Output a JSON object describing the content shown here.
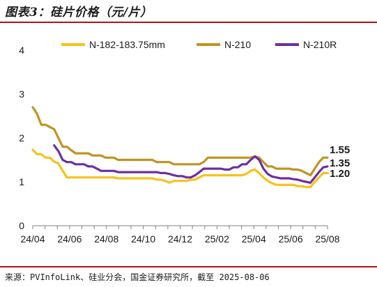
{
  "header": {
    "title": "图表3：硅片价格（元/片）"
  },
  "footer": {
    "source": "来源：PVInfoLink、硅业分会，国金证券研究所，截至 2025-08-06"
  },
  "colors": {
    "accent_rule": "#b0121b",
    "axis": "#7f7f7f",
    "text": "#1a1a1a"
  },
  "chart_data": {
    "type": "line",
    "title": "硅片价格（元/片）",
    "xlabel": "",
    "ylabel": "",
    "ylim": [
      0,
      4
    ],
    "y_ticks": [
      0,
      1,
      2,
      3,
      4
    ],
    "x_tick_labels": [
      "24/04",
      "24/06",
      "24/08",
      "24/10",
      "24/12",
      "25/02",
      "25/04",
      "25/06",
      "25/08"
    ],
    "grid": false,
    "legend_position": "top",
    "end_labels": [
      "1.55",
      "1.35",
      "1.20"
    ],
    "series": [
      {
        "name": "N-182-183.75mm",
        "color": "#f7c21a",
        "values": [
          1.73,
          1.63,
          1.63,
          1.55,
          1.55,
          1.46,
          1.42,
          1.25,
          1.1,
          1.1,
          1.1,
          1.1,
          1.1,
          1.1,
          1.1,
          1.1,
          1.1,
          1.1,
          1.1,
          1.1,
          1.08,
          1.08,
          1.08,
          1.08,
          1.08,
          1.08,
          1.08,
          1.08,
          1.08,
          1.05,
          1.05,
          1.02,
          0.98,
          1.02,
          1.02,
          1.02,
          1.02,
          1.05,
          1.05,
          1.1,
          1.15,
          1.15,
          1.15,
          1.15,
          1.15,
          1.15,
          1.15,
          1.15,
          1.15,
          1.15,
          1.18,
          1.25,
          1.28,
          1.2,
          1.1,
          1.02,
          0.97,
          0.93,
          0.93,
          0.93,
          0.93,
          0.93,
          0.9,
          0.9,
          0.88,
          0.88,
          1.0,
          1.1,
          1.2,
          1.2
        ]
      },
      {
        "name": "N-210",
        "color": "#bf9420",
        "values": [
          2.7,
          2.55,
          2.3,
          2.3,
          2.25,
          2.2,
          2.0,
          1.8,
          1.8,
          1.72,
          1.65,
          1.65,
          1.65,
          1.65,
          1.6,
          1.6,
          1.6,
          1.55,
          1.55,
          1.55,
          1.5,
          1.5,
          1.5,
          1.5,
          1.5,
          1.5,
          1.5,
          1.5,
          1.5,
          1.45,
          1.45,
          1.45,
          1.45,
          1.4,
          1.4,
          1.4,
          1.4,
          1.4,
          1.4,
          1.4,
          1.45,
          1.55,
          1.55,
          1.55,
          1.55,
          1.55,
          1.55,
          1.55,
          1.55,
          1.55,
          1.55,
          1.55,
          1.58,
          1.55,
          1.45,
          1.35,
          1.35,
          1.3,
          1.3,
          1.3,
          1.3,
          1.28,
          1.28,
          1.25,
          1.2,
          1.15,
          1.3,
          1.45,
          1.55,
          1.55
        ]
      },
      {
        "name": "N-210R",
        "color": "#6c2fa0",
        "values": [
          null,
          null,
          null,
          null,
          null,
          1.83,
          1.7,
          1.5,
          1.45,
          1.45,
          1.4,
          1.4,
          1.4,
          1.35,
          1.35,
          1.3,
          1.25,
          1.25,
          1.25,
          1.25,
          1.22,
          1.22,
          1.22,
          1.22,
          1.22,
          1.22,
          1.22,
          1.22,
          1.22,
          1.22,
          1.2,
          1.2,
          1.18,
          1.15,
          1.13,
          1.13,
          1.1,
          1.1,
          1.15,
          1.22,
          1.3,
          1.3,
          1.3,
          1.3,
          1.3,
          1.28,
          1.28,
          1.33,
          1.33,
          1.4,
          1.4,
          1.5,
          1.58,
          1.5,
          1.3,
          1.18,
          1.12,
          1.1,
          1.08,
          1.08,
          1.08,
          1.06,
          1.05,
          1.02,
          1.0,
          0.98,
          1.1,
          1.22,
          1.33,
          1.35
        ]
      }
    ]
  }
}
